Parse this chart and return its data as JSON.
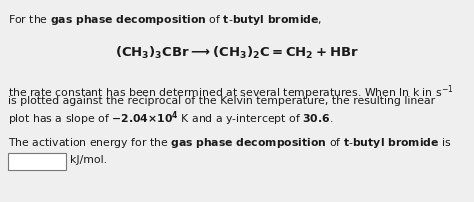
{
  "bg_color": "#efefef",
  "text_color": "#1a1a1a",
  "figsize": [
    4.74,
    2.03
  ],
  "dpi": 100,
  "fontsize": 7.8,
  "eq_fontsize": 9.5
}
